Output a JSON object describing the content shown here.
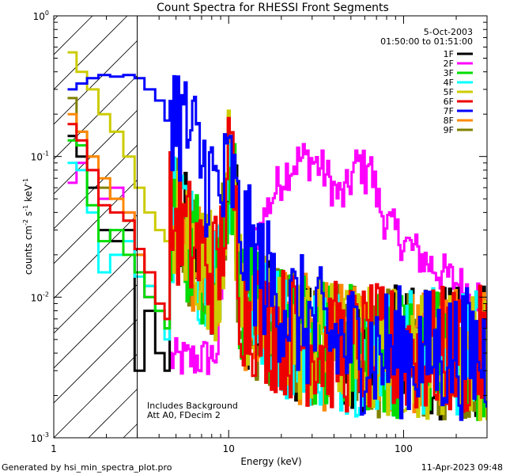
{
  "chart_data": {
    "type": "line",
    "title": "Count Spectra for RHESSI Front Segments",
    "xlabel": "Energy (keV)",
    "ylabel_parts": {
      "pre": "counts cm",
      "exp1": "-2",
      "mid1": " s",
      "exp2": "-1",
      "mid2": " keV",
      "exp3": "-1"
    },
    "xscale": "log",
    "yscale": "log",
    "xlim": [
      1,
      300
    ],
    "ylim": [
      0.001,
      1
    ],
    "x_ticks": [
      {
        "value": 1,
        "label": "1"
      },
      {
        "value": 10,
        "label": "10"
      },
      {
        "value": 100,
        "label": "100"
      }
    ],
    "y_ticks": [
      {
        "value": 1,
        "base": "10",
        "exp": "0"
      },
      {
        "value": 0.1,
        "base": "10",
        "exp": "-1"
      },
      {
        "value": 0.01,
        "base": "10",
        "exp": "-2"
      },
      {
        "value": 0.001,
        "base": "10",
        "exp": "-3"
      }
    ],
    "attenuator_cutoff_keV": 3.0,
    "date": "5-Oct-2003",
    "time_range": "01:50:00 to 01:51:00",
    "notes": [
      "Includes Background",
      "Att A0, FDecim 2"
    ],
    "series": [
      {
        "name": "1F",
        "color": "#000000",
        "low": [
          [
            1.2,
            0.14
          ],
          [
            1.35,
            0.1
          ],
          [
            1.55,
            0.06
          ],
          [
            1.8,
            0.03
          ],
          [
            2.1,
            0.025
          ],
          [
            2.5,
            0.03
          ],
          [
            2.9,
            0.003
          ],
          [
            3.3,
            0.008
          ],
          [
            3.8,
            0.004
          ],
          [
            4.3,
            0.003
          ]
        ]
      },
      {
        "name": "2F",
        "color": "#ff00ff",
        "low": [
          [
            1.2,
            0.065
          ],
          [
            1.35,
            0.09
          ],
          [
            1.55,
            0.08
          ],
          [
            1.8,
            0.05
          ],
          [
            2.1,
            0.06
          ],
          [
            2.5,
            0.04
          ],
          [
            2.9,
            0.02
          ],
          [
            3.3,
            0.01
          ],
          [
            3.8,
            0.008
          ],
          [
            4.3,
            0.007
          ]
        ]
      },
      {
        "name": "3F",
        "color": "#00dd00",
        "low": [
          [
            1.2,
            0.13
          ],
          [
            1.35,
            0.12
          ],
          [
            1.55,
            0.045
          ],
          [
            1.8,
            0.025
          ],
          [
            2.1,
            0.03
          ],
          [
            2.5,
            0.02
          ],
          [
            2.9,
            0.015
          ],
          [
            3.3,
            0.01
          ],
          [
            3.8,
            0.008
          ],
          [
            4.3,
            0.006
          ]
        ]
      },
      {
        "name": "4F",
        "color": "#00ffff",
        "low": [
          [
            1.2,
            0.09
          ],
          [
            1.35,
            0.08
          ],
          [
            1.55,
            0.04
          ],
          [
            1.8,
            0.015
          ],
          [
            2.1,
            0.02
          ],
          [
            2.5,
            0.025
          ],
          [
            2.9,
            0.014
          ],
          [
            3.3,
            0.012
          ],
          [
            3.8,
            0.008
          ],
          [
            4.3,
            0.005
          ]
        ]
      },
      {
        "name": "5F",
        "color": "#cccc00",
        "low": [
          [
            1.2,
            0.55
          ],
          [
            1.35,
            0.4
          ],
          [
            1.55,
            0.3
          ],
          [
            1.8,
            0.2
          ],
          [
            2.1,
            0.15
          ],
          [
            2.5,
            0.1
          ],
          [
            2.9,
            0.06
          ],
          [
            3.3,
            0.04
          ],
          [
            3.8,
            0.03
          ],
          [
            4.3,
            0.025
          ]
        ]
      },
      {
        "name": "6F",
        "color": "#ee0000",
        "low": [
          [
            1.2,
            0.17
          ],
          [
            1.35,
            0.13
          ],
          [
            1.55,
            0.08
          ],
          [
            1.8,
            0.045
          ],
          [
            2.1,
            0.04
          ],
          [
            2.5,
            0.035
          ],
          [
            2.9,
            0.022
          ],
          [
            3.3,
            0.015
          ],
          [
            3.8,
            0.009
          ],
          [
            4.3,
            0.007
          ]
        ]
      },
      {
        "name": "7F",
        "color": "#0000ff",
        "low": [
          [
            1.2,
            0.3
          ],
          [
            1.35,
            0.33
          ],
          [
            1.55,
            0.36
          ],
          [
            1.8,
            0.38
          ],
          [
            2.1,
            0.37
          ],
          [
            2.5,
            0.38
          ],
          [
            2.9,
            0.36
          ],
          [
            3.3,
            0.3
          ],
          [
            3.8,
            0.25
          ],
          [
            4.3,
            0.18
          ]
        ]
      },
      {
        "name": "8F",
        "color": "#ff8800",
        "low": [
          [
            1.2,
            0.2
          ],
          [
            1.35,
            0.15
          ],
          [
            1.55,
            0.1
          ],
          [
            1.8,
            0.07
          ],
          [
            2.1,
            0.05
          ],
          [
            2.5,
            0.04
          ],
          [
            2.9,
            0.02
          ],
          [
            3.3,
            0.012
          ],
          [
            3.8,
            0.008
          ],
          [
            4.3,
            0.006
          ]
        ]
      },
      {
        "name": "9F",
        "color": "#808000",
        "low": [
          [
            1.2,
            0.26
          ],
          [
            1.35,
            0.15
          ],
          [
            1.55,
            0.1
          ],
          [
            1.8,
            0.06
          ],
          [
            2.1,
            0.05
          ],
          [
            2.5,
            0.035
          ],
          [
            2.9,
            0.02
          ],
          [
            3.3,
            0.012
          ],
          [
            3.8,
            0.008
          ],
          [
            4.3,
            0.006
          ]
        ]
      }
    ]
  },
  "footer": {
    "generated_by": "Generated by hsi_min_spectra_plot.pro",
    "timestamp": "11-Apr-2023 09:48"
  }
}
